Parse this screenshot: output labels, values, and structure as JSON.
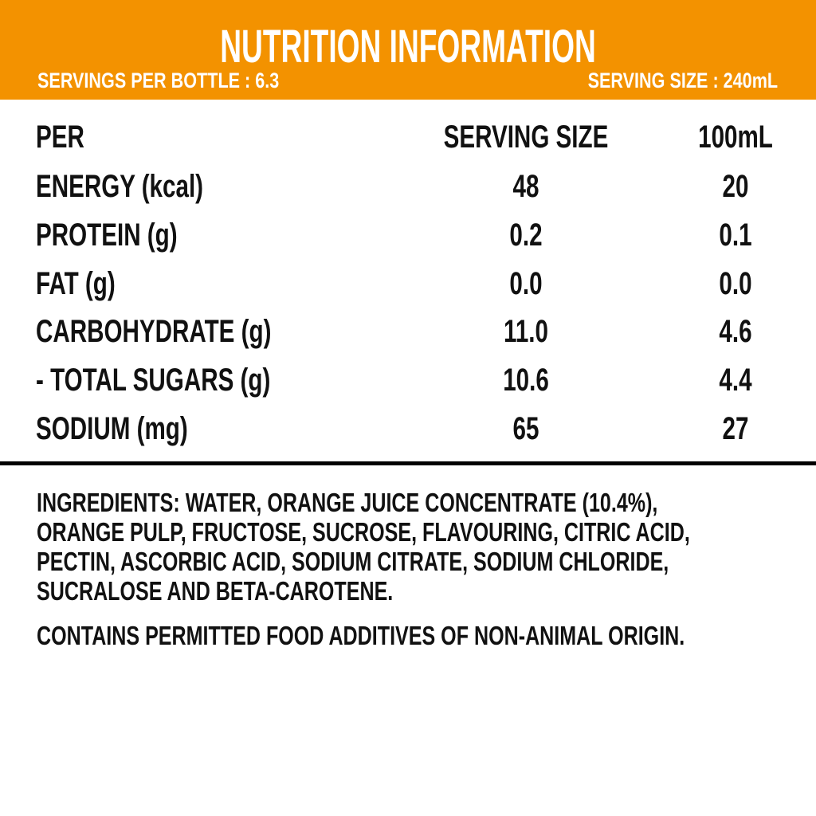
{
  "header": {
    "title": "NUTRITION INFORMATION",
    "servings_per_bottle": "SERVINGS PER BOTTLE : 6.3",
    "serving_size": "SERVING SIZE : 240mL",
    "accent_color": "#F39200"
  },
  "table": {
    "columns": [
      "PER",
      "SERVING SIZE",
      "100mL"
    ],
    "rows": [
      {
        "label": "ENERGY (kcal)",
        "serving": "48",
        "per100": "20"
      },
      {
        "label": "PROTEIN (g)",
        "serving": "0.2",
        "per100": "0.1"
      },
      {
        "label": "FAT (g)",
        "serving": "0.0",
        "per100": "0.0"
      },
      {
        "label": "CARBOHYDRATE (g)",
        "serving": "11.0",
        "per100": "4.6"
      },
      {
        "label": "- TOTAL SUGARS (g)",
        "serving": "10.6",
        "per100": "4.4"
      },
      {
        "label": "SODIUM (mg)",
        "serving": "65",
        "per100": "27"
      }
    ]
  },
  "ingredients": {
    "lines": [
      "INGREDIENTS: WATER, ORANGE JUICE CONCENTRATE (10.4%),",
      "ORANGE PULP, FRUCTOSE, SUCROSE, FLAVOURING, CITRIC ACID,",
      "PECTIN, ASCORBIC ACID, SODIUM CITRATE, SODIUM CHLORIDE,",
      "SUCRALOSE AND BETA-CAROTENE."
    ],
    "note": "CONTAINS PERMITTED FOOD ADDITIVES OF NON-ANIMAL ORIGIN."
  }
}
